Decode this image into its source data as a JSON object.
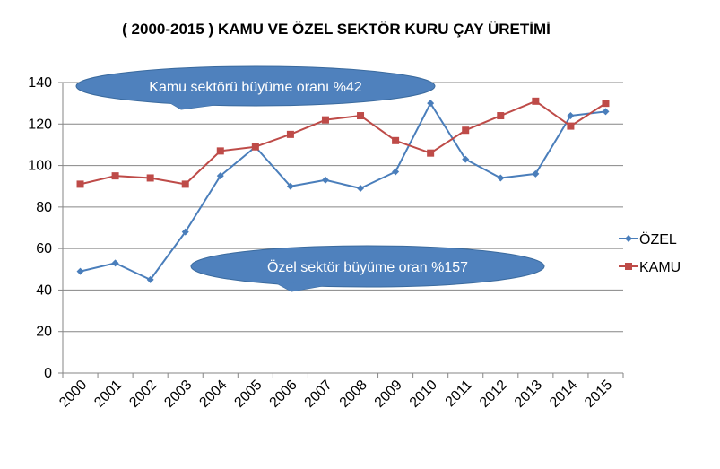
{
  "chart_data": {
    "type": "line",
    "title": "( 2000-2015 )  KAMU  VE ÖZEL SEKTÖR KURU ÇAY ÜRETİMİ",
    "xlabel": "",
    "ylabel": "",
    "categories": [
      "2000",
      "2001",
      "2002",
      "2003",
      "2004",
      "2005",
      "2006",
      "2007",
      "2008",
      "2009",
      "2010",
      "2011",
      "2012",
      "2013",
      "2014",
      "2015"
    ],
    "ylim": [
      0,
      140
    ],
    "yticks": [
      0,
      20,
      40,
      60,
      80,
      100,
      120,
      140
    ],
    "grid": true,
    "legend_position": "right",
    "series": [
      {
        "name": "ÖZEL",
        "color": "#4a7ebb",
        "marker": "diamond",
        "values": [
          49,
          53,
          45,
          68,
          95,
          109,
          90,
          93,
          89,
          97,
          130,
          103,
          94,
          96,
          124,
          126
        ]
      },
      {
        "name": "KAMU",
        "color": "#be4b48",
        "marker": "square",
        "values": [
          91,
          95,
          94,
          91,
          107,
          109,
          115,
          122,
          124,
          112,
          106,
          117,
          124,
          131,
          119,
          130
        ]
      }
    ],
    "annotations": [
      {
        "text": "Kamu sektörü büyüme oranı %42",
        "anchor_year": "2002",
        "anchor_value": 136
      },
      {
        "text": "Özel sektör büyüme oran   %157",
        "anchor_year": "2006",
        "anchor_value": 40
      }
    ],
    "callout_color": "#4f81bd"
  }
}
